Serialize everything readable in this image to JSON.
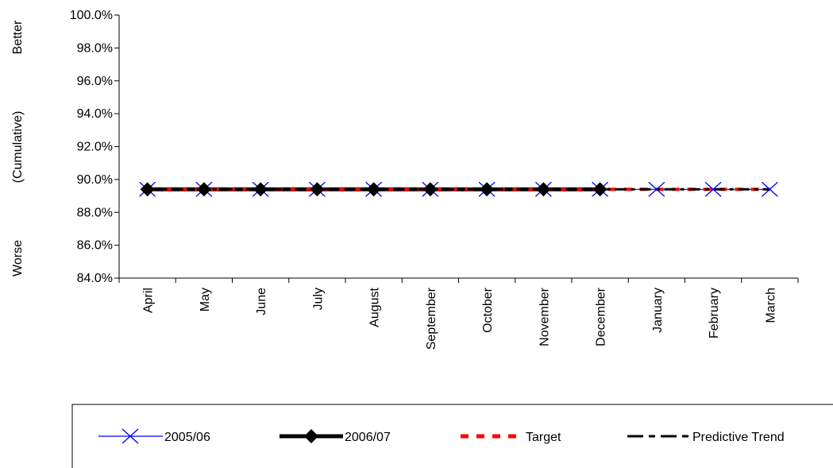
{
  "chart_data": {
    "type": "line",
    "categories": [
      "April",
      "May",
      "June",
      "July",
      "August",
      "September",
      "October",
      "November",
      "December",
      "January",
      "February",
      "March"
    ],
    "ylim": [
      0.84,
      1.0
    ],
    "yticks": [
      "84.0%",
      "86.0%",
      "88.0%",
      "90.0%",
      "92.0%",
      "94.0%",
      "96.0%",
      "98.0%",
      "100.0%"
    ],
    "ylabel_parts": {
      "bottom": "Worse",
      "middle": "(Cumulative)",
      "top": "Better"
    },
    "series": [
      {
        "name": "2005/06",
        "key": "s2005",
        "color": "#0000ff",
        "marker": "x",
        "values": [
          0.894,
          0.894,
          0.894,
          0.894,
          0.894,
          0.894,
          0.894,
          0.894,
          0.894,
          0.894,
          0.894,
          0.894
        ]
      },
      {
        "name": "2006/07",
        "key": "s2006",
        "color": "#000000",
        "marker": "diamond",
        "values": [
          0.894,
          0.894,
          0.894,
          0.894,
          0.894,
          0.894,
          0.894,
          0.894,
          0.894,
          null,
          null,
          null
        ]
      },
      {
        "name": "Target",
        "key": "target",
        "color": "#ff0000",
        "marker": "none",
        "values": [
          0.894,
          0.894,
          0.894,
          0.894,
          0.894,
          0.894,
          0.894,
          0.894,
          0.894,
          0.894,
          0.894,
          0.894
        ]
      },
      {
        "name": "Predictive Trend",
        "key": "trend",
        "color": "#000000",
        "marker": "none",
        "values": [
          0.894,
          0.894,
          0.894,
          0.894,
          0.894,
          0.894,
          0.894,
          0.894,
          0.894,
          0.894,
          0.894,
          0.894
        ]
      }
    ],
    "legend_position": "bottom",
    "grid": false
  }
}
